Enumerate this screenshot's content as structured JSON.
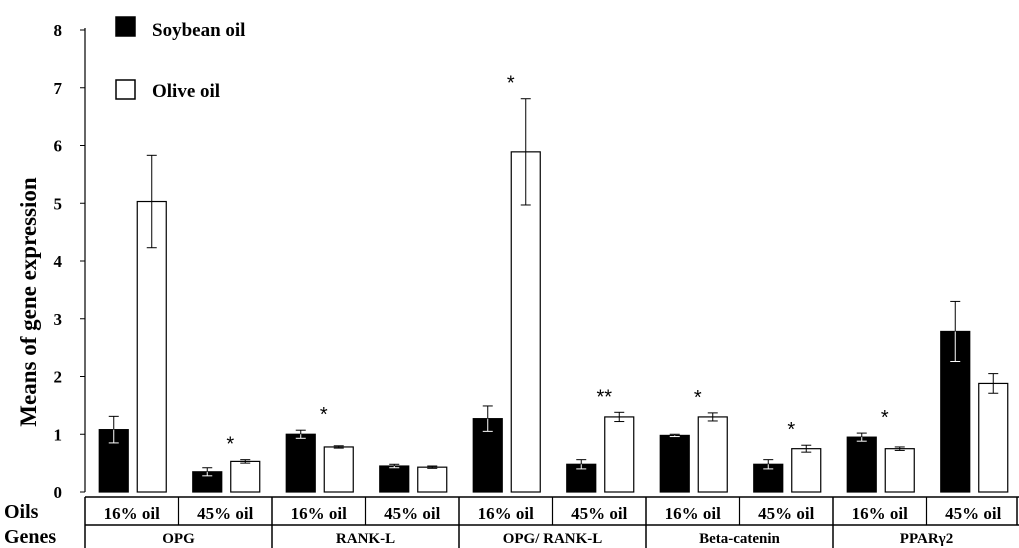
{
  "chart_data": {
    "type": "bar",
    "ylabel": "Means of gene expression",
    "ylim": [
      0,
      8
    ],
    "yticks": [
      "0",
      "1",
      "2",
      "3",
      "4",
      "5",
      "6",
      "7",
      "8"
    ],
    "grid": false,
    "legend_position": "top-left",
    "row_labels": {
      "oils": "Oils",
      "genes": "Genes"
    },
    "genes": [
      "OPG",
      "RANK-L",
      "OPG/ RANK-L",
      "Beta-catenin",
      "PPARγ2"
    ],
    "oil_levels": [
      "16% oil",
      "45% oil"
    ],
    "categories": [
      "OPG 16% oil",
      "OPG 45% oil",
      "RANK-L 16% oil",
      "RANK-L 45% oil",
      "OPG/ RANK-L 16% oil",
      "OPG/ RANK-L 45% oil",
      "Beta-catenin 16% oil",
      "Beta-catenin 45% oil",
      "PPARγ2 16% oil",
      "PPARγ2 45% oil"
    ],
    "series": [
      {
        "name": "Soybean oil",
        "color": "#000000",
        "values": [
          1.08,
          0.35,
          1.0,
          0.45,
          1.27,
          0.48,
          0.98,
          0.48,
          0.95,
          2.78
        ],
        "errors": [
          0.23,
          0.07,
          0.07,
          0.03,
          0.22,
          0.08,
          0.02,
          0.08,
          0.07,
          0.52
        ]
      },
      {
        "name": "Olive oil",
        "color": "#ffffff",
        "values": [
          5.03,
          0.53,
          0.78,
          0.43,
          5.89,
          1.3,
          1.3,
          0.75,
          0.75,
          1.88
        ],
        "errors": [
          0.8,
          0.03,
          0.02,
          0.02,
          0.92,
          0.08,
          0.07,
          0.06,
          0.03,
          0.17
        ]
      }
    ],
    "annotations": [
      {
        "category": "OPG 45% oil",
        "text": "*"
      },
      {
        "category": "RANK-L 16% oil",
        "text": "*"
      },
      {
        "category": "OPG/ RANK-L 16% oil",
        "text": "*"
      },
      {
        "category": "OPG/ RANK-L 45% oil",
        "text": "**"
      },
      {
        "category": "Beta-catenin 16% oil",
        "text": "*"
      },
      {
        "category": "Beta-catenin 45% oil",
        "text": "*"
      },
      {
        "category": "PPARγ2 16% oil",
        "text": "*"
      }
    ]
  }
}
